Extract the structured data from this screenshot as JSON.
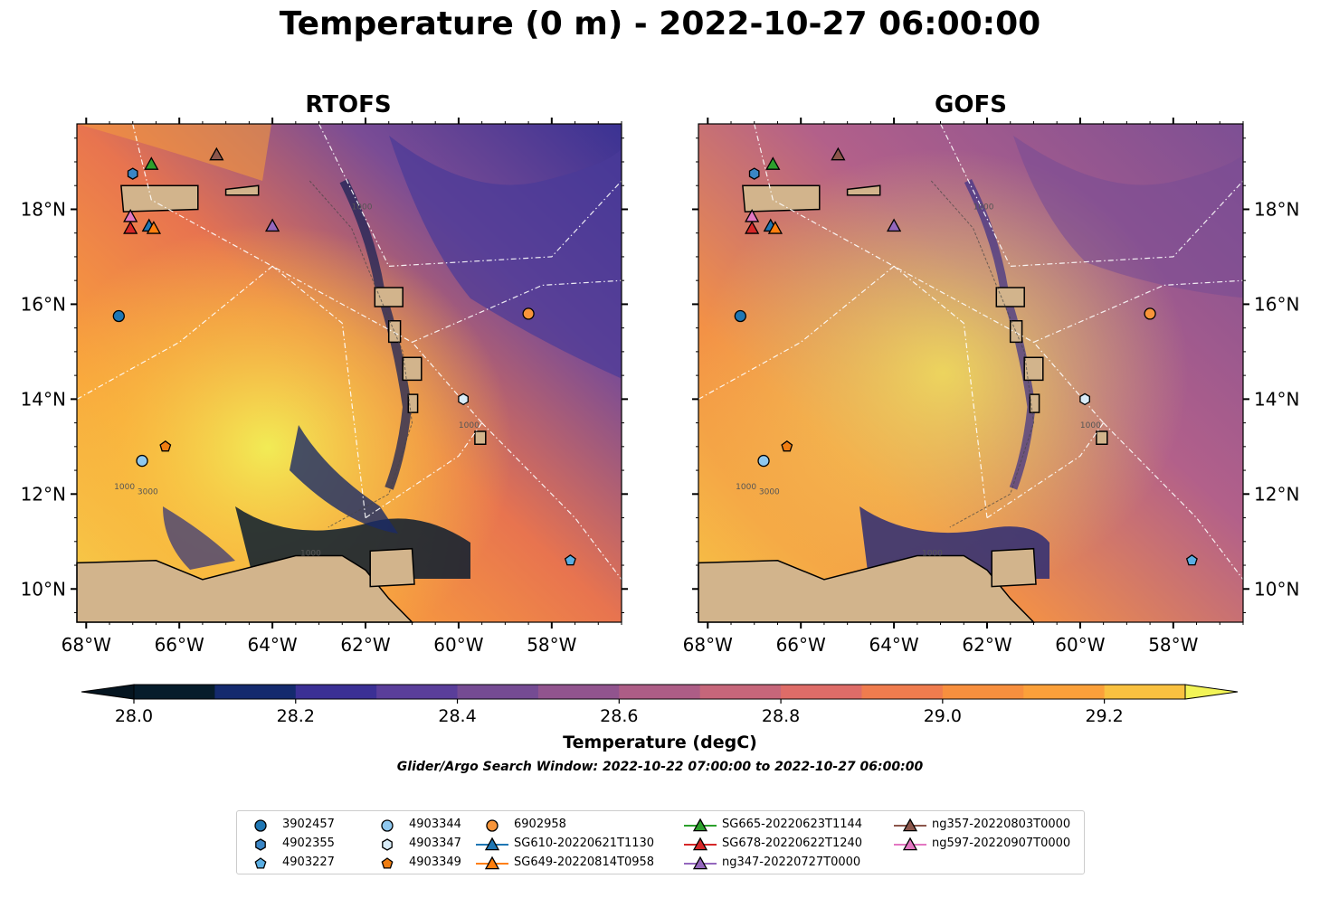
{
  "title": "Temperature (0 m) - 2022-10-27 06:00:00",
  "panels": [
    {
      "id": "rtofs",
      "title": "RTOFS"
    },
    {
      "id": "gofs",
      "title": "GOFS"
    }
  ],
  "map": {
    "lon_range": [
      -68.2,
      -56.5
    ],
    "lat_range": [
      9.3,
      19.8
    ],
    "lon_ticks": [
      "68°W",
      "66°W",
      "64°W",
      "62°W",
      "60°W",
      "58°W"
    ],
    "lat_ticks": [
      "18°N",
      "16°N",
      "14°N",
      "12°N",
      "10°N"
    ],
    "land_color": "#d2b48c",
    "contour_labels": [
      "1000",
      "3000",
      "1000",
      "1000",
      "1000"
    ]
  },
  "colorbar": {
    "label": "Temperature (degC)",
    "ticks": [
      "28.0",
      "28.2",
      "28.4",
      "28.6",
      "28.8",
      "29.0",
      "29.2"
    ],
    "range": [
      28.0,
      29.3
    ],
    "levels": [
      28.0,
      28.1,
      28.2,
      28.3,
      28.4,
      28.5,
      28.6,
      28.7,
      28.8,
      28.9,
      29.0,
      29.1,
      29.2,
      29.3
    ],
    "colors": [
      "#061c2b",
      "#142a6e",
      "#3b3095",
      "#5a3e9a",
      "#754b93",
      "#91548e",
      "#ad5d86",
      "#c6667a",
      "#de6c68",
      "#ef7c4e",
      "#f78f3e",
      "#fba03a",
      "#f9c140",
      "#eded53"
    ],
    "extend": "both",
    "under_color": "#051520",
    "over_color": "#f2f457"
  },
  "search_window": "Glider/Argo Search Window: 2022-10-22 07:00:00 to 2022-10-27 06:00:00",
  "legend": [
    {
      "label": "3902457",
      "marker": "circle",
      "color": "#1f77b4"
    },
    {
      "label": "4902355",
      "marker": "hexagon",
      "color": "#3a86c6"
    },
    {
      "label": "4903227",
      "marker": "pentagon",
      "color": "#5aaee3"
    },
    {
      "label": "4903344",
      "marker": "circle",
      "color": "#8fc8ef"
    },
    {
      "label": "4903347",
      "marker": "hexagon",
      "color": "#d9ecf8"
    },
    {
      "label": "4903349",
      "marker": "pentagon",
      "color": "#f07d11"
    },
    {
      "label": "6902958",
      "marker": "circle",
      "color": "#f8953a"
    },
    {
      "label": "SG610-20220621T1130",
      "marker": "triangle-line",
      "color": "#1f77b4"
    },
    {
      "label": "SG649-20220814T0958",
      "marker": "triangle-line",
      "color": "#ff7f0e"
    },
    {
      "label": "SG665-20220623T1144",
      "marker": "triangle-line",
      "color": "#2ca02c"
    },
    {
      "label": "SG678-20220622T1240",
      "marker": "triangle-line",
      "color": "#d62728"
    },
    {
      "label": "ng347-20220727T0000",
      "marker": "triangle-line",
      "color": "#9467bd"
    },
    {
      "label": "ng357-20220803T0000",
      "marker": "triangle-line",
      "color": "#8c564b"
    },
    {
      "label": "ng597-20220907T0000",
      "marker": "triangle-line",
      "color": "#e377c2"
    }
  ],
  "platforms": [
    {
      "id": "3902457",
      "lon": -67.3,
      "lat": 15.75
    },
    {
      "id": "4902355",
      "lon": -67.0,
      "lat": 18.75
    },
    {
      "id": "4903227",
      "lon": -57.6,
      "lat": 10.6
    },
    {
      "id": "4903344",
      "lon": -66.8,
      "lat": 12.7
    },
    {
      "id": "4903347",
      "lon": -59.9,
      "lat": 14.0
    },
    {
      "id": "4903349",
      "lon": -66.3,
      "lat": 13.0
    },
    {
      "id": "6902958",
      "lon": -58.5,
      "lat": 15.8
    },
    {
      "id": "SG610-20220621T1130",
      "lon": -66.65,
      "lat": 17.65
    },
    {
      "id": "SG649-20220814T0958",
      "lon": -66.55,
      "lat": 17.6
    },
    {
      "id": "SG665-20220623T1144",
      "lon": -66.6,
      "lat": 18.95
    },
    {
      "id": "SG678-20220622T1240",
      "lon": -67.05,
      "lat": 17.6
    },
    {
      "id": "ng347-20220727T0000",
      "lon": -64.0,
      "lat": 17.65
    },
    {
      "id": "ng357-20220803T0000",
      "lon": -65.2,
      "lat": 19.15
    },
    {
      "id": "ng597-20220907T0000",
      "lon": -67.05,
      "lat": 17.85
    }
  ]
}
